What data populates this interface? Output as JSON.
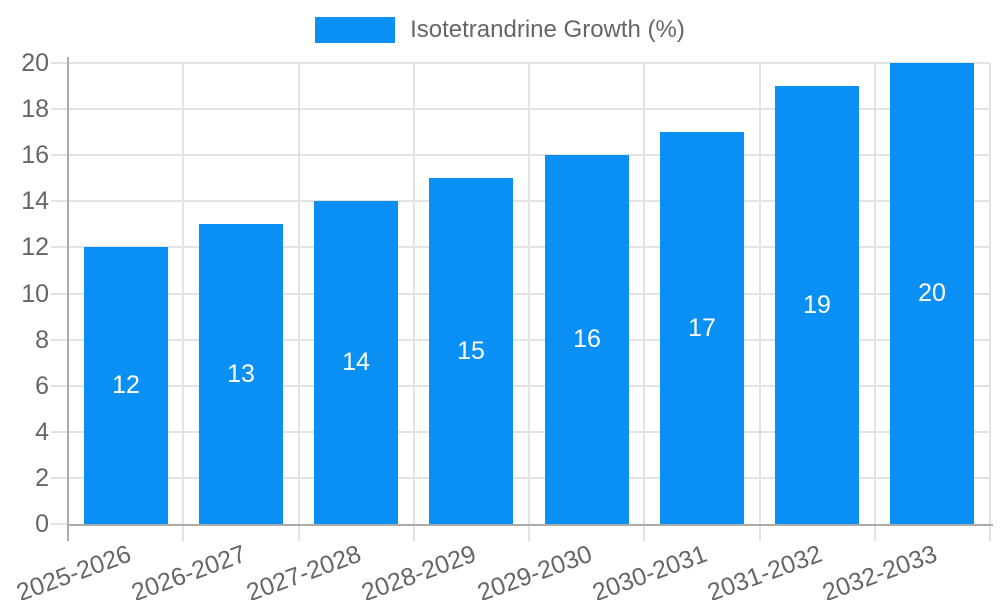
{
  "chart_data": {
    "type": "bar",
    "title": "",
    "legend": "Isotetrandrine Growth (%)",
    "legend_position": "top-center",
    "categories": [
      "2025-2026",
      "2026-2027",
      "2027-2028",
      "2028-2029",
      "2029-2030",
      "2030-2031",
      "2031-2032",
      "2032-2033"
    ],
    "values": [
      12,
      13,
      14,
      15,
      16,
      17,
      19,
      20
    ],
    "bar_value_labels": [
      "12",
      "13",
      "14",
      "15",
      "16",
      "17",
      "19",
      "20"
    ],
    "xlabel": "",
    "ylabel": "",
    "ylim": [
      0,
      20
    ],
    "ytick_step": 2,
    "yticks": [
      0,
      2,
      4,
      6,
      8,
      10,
      12,
      14,
      16,
      18,
      20
    ],
    "grid": true,
    "x_label_rotation_deg": -20,
    "colors": {
      "bar": "#0a90f4",
      "grid": "#e3e3e3",
      "axis": "#ababab",
      "text": "#666666",
      "bar_label": "#ffffff"
    }
  }
}
